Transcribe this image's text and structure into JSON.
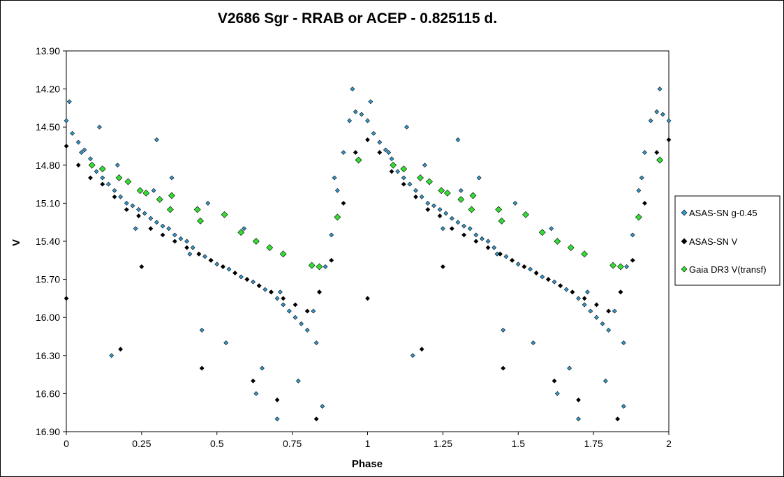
{
  "chart_data": {
    "type": "scatter",
    "title": "V2686 Sgr - RRAB or ACEP - 0.825115 d.",
    "xlabel": "Phase",
    "ylabel": "V",
    "xlim": [
      0,
      2
    ],
    "ylim": [
      16.9,
      13.9
    ],
    "y_inverted": true,
    "xticks": [
      0,
      0.25,
      0.5,
      0.75,
      1,
      1.25,
      1.5,
      1.75,
      2
    ],
    "xtick_labels": [
      "0",
      "0.25",
      "0.5",
      "0.75",
      "1",
      "1.25",
      "1.5",
      "1.75",
      "2"
    ],
    "yticks": [
      13.9,
      14.2,
      14.5,
      14.8,
      15.1,
      15.4,
      15.7,
      16.0,
      16.3,
      16.6,
      16.9
    ],
    "ytick_labels": [
      "13.90",
      "14.20",
      "14.50",
      "14.80",
      "15.10",
      "15.40",
      "15.70",
      "16.00",
      "16.30",
      "16.60",
      "16.90"
    ],
    "grid": false,
    "legend_position": "right",
    "series": [
      {
        "name": "ASAS-SN g-0.45",
        "color": "#3399cc",
        "marker": "diamond",
        "x": [
          0.0,
          0.02,
          0.04,
          0.06,
          0.08,
          0.1,
          0.12,
          0.14,
          0.16,
          0.18,
          0.2,
          0.22,
          0.24,
          0.26,
          0.28,
          0.3,
          0.32,
          0.34,
          0.36,
          0.38,
          0.4,
          0.42,
          0.44,
          0.46,
          0.48,
          0.5,
          0.52,
          0.54,
          0.56,
          0.58,
          0.6,
          0.62,
          0.64,
          0.66,
          0.68,
          0.7,
          0.72,
          0.74,
          0.76,
          0.78,
          0.8,
          0.82,
          0.84,
          0.86,
          0.88,
          0.9,
          0.92,
          0.94,
          0.96,
          0.98,
          1.0,
          1.02,
          1.04,
          1.06,
          1.08,
          1.1,
          1.12,
          1.14,
          1.16,
          1.18,
          1.2,
          1.22,
          1.24,
          1.26,
          1.28,
          1.3,
          1.32,
          1.34,
          1.36,
          1.38,
          1.4,
          1.42,
          1.44,
          1.46,
          1.48,
          1.5,
          1.52,
          1.54,
          1.56,
          1.58,
          1.6,
          1.62,
          1.64,
          1.66,
          1.68,
          1.7,
          1.72,
          1.74,
          1.76,
          1.78,
          1.8,
          1.82,
          1.84,
          1.86,
          1.88,
          1.9,
          1.92,
          1.94,
          1.96,
          1.98,
          2.0,
          0.01,
          0.05,
          0.11,
          0.17,
          0.23,
          0.29,
          0.35,
          0.41,
          0.47,
          0.53,
          0.59,
          0.65,
          0.71,
          0.77,
          0.83,
          0.89,
          0.95,
          1.01,
          1.07,
          1.13,
          1.19,
          1.25,
          1.31,
          1.37,
          1.43,
          1.49,
          1.55,
          1.61,
          1.67,
          1.73,
          1.79,
          1.85,
          1.91,
          1.97,
          0.15,
          0.45,
          0.63,
          0.85,
          1.15,
          1.45,
          1.63,
          1.85,
          0.3,
          0.7,
          1.3,
          1.7
        ],
        "y": [
          14.45,
          14.55,
          14.62,
          14.68,
          14.75,
          14.85,
          14.9,
          14.95,
          15.0,
          15.05,
          15.1,
          15.12,
          15.15,
          15.18,
          15.22,
          15.25,
          15.28,
          15.3,
          15.35,
          15.38,
          15.4,
          15.45,
          15.5,
          15.52,
          15.55,
          15.58,
          15.6,
          15.62,
          15.65,
          15.68,
          15.7,
          15.72,
          15.75,
          15.78,
          15.8,
          15.85,
          15.9,
          15.95,
          16.0,
          16.05,
          16.1,
          15.95,
          15.8,
          15.6,
          15.35,
          15.0,
          14.7,
          14.45,
          14.38,
          14.4,
          14.45,
          14.55,
          14.62,
          14.68,
          14.75,
          14.85,
          14.9,
          14.95,
          15.0,
          15.05,
          15.1,
          15.12,
          15.15,
          15.18,
          15.22,
          15.25,
          15.28,
          15.3,
          15.35,
          15.38,
          15.4,
          15.45,
          15.5,
          15.52,
          15.55,
          15.58,
          15.6,
          15.62,
          15.65,
          15.68,
          15.7,
          15.72,
          15.75,
          15.78,
          15.8,
          15.85,
          15.9,
          15.95,
          16.0,
          16.05,
          16.1,
          15.95,
          15.8,
          15.6,
          15.35,
          15.0,
          14.7,
          14.45,
          14.38,
          14.4,
          14.45,
          14.3,
          14.7,
          14.5,
          14.8,
          15.3,
          15.0,
          14.9,
          15.5,
          15.1,
          16.2,
          15.3,
          16.4,
          15.8,
          16.5,
          16.2,
          14.9,
          14.2,
          14.3,
          14.7,
          14.5,
          14.8,
          15.3,
          15.0,
          14.9,
          15.5,
          15.1,
          16.2,
          15.3,
          16.4,
          15.8,
          16.5,
          16.2,
          14.9,
          14.2,
          16.3,
          16.1,
          16.6,
          16.7,
          16.3,
          16.1,
          16.6,
          16.7,
          14.6,
          16.8,
          14.6,
          16.8
        ]
      },
      {
        "name": "ASAS-SN V",
        "color": "#000000",
        "marker": "diamond",
        "x": [
          0.0,
          0.04,
          0.08,
          0.12,
          0.16,
          0.2,
          0.24,
          0.28,
          0.32,
          0.36,
          0.4,
          0.44,
          0.48,
          0.52,
          0.56,
          0.6,
          0.64,
          0.68,
          0.72,
          0.76,
          0.8,
          0.84,
          0.88,
          0.92,
          0.96,
          1.0,
          1.04,
          1.08,
          1.12,
          1.16,
          1.2,
          1.24,
          1.28,
          1.32,
          1.36,
          1.4,
          1.44,
          1.48,
          1.52,
          1.56,
          1.6,
          1.64,
          1.68,
          1.72,
          1.76,
          1.8,
          1.84,
          1.88,
          1.92,
          1.96,
          2.0,
          0.0,
          0.18,
          0.45,
          0.62,
          0.83,
          1.0,
          1.18,
          1.45,
          1.62,
          1.83,
          0.25,
          0.7,
          1.25,
          1.7
        ],
        "y": [
          14.65,
          14.8,
          14.9,
          14.95,
          15.05,
          15.15,
          15.2,
          15.3,
          15.35,
          15.4,
          15.45,
          15.5,
          15.55,
          15.6,
          15.65,
          15.7,
          15.75,
          15.8,
          15.85,
          15.9,
          15.95,
          15.8,
          15.55,
          15.1,
          14.7,
          14.6,
          14.7,
          14.85,
          14.95,
          15.05,
          15.15,
          15.2,
          15.3,
          15.35,
          15.4,
          15.45,
          15.5,
          15.55,
          15.6,
          15.65,
          15.7,
          15.75,
          15.8,
          15.85,
          15.9,
          15.95,
          15.8,
          15.55,
          15.1,
          14.7,
          14.6,
          15.85,
          16.25,
          16.4,
          16.5,
          16.8,
          15.85,
          16.25,
          16.4,
          16.5,
          16.8,
          15.6,
          16.65,
          15.6,
          16.65
        ]
      },
      {
        "name": "Gaia DR3 V(transf)",
        "color": "#33dd33",
        "marker": "diamond",
        "x": [
          0.085,
          0.12,
          0.175,
          0.205,
          0.245,
          0.265,
          0.31,
          0.345,
          0.35,
          0.435,
          0.445,
          0.525,
          0.58,
          0.63,
          0.675,
          0.72,
          0.815,
          0.84,
          0.9,
          0.97,
          1.085,
          1.12,
          1.175,
          1.205,
          1.245,
          1.265,
          1.31,
          1.345,
          1.35,
          1.435,
          1.445,
          1.525,
          1.58,
          1.63,
          1.675,
          1.72,
          1.815,
          1.84,
          1.9,
          1.97
        ],
        "y": [
          14.8,
          14.83,
          14.9,
          14.93,
          15.0,
          15.02,
          15.07,
          15.15,
          15.04,
          15.15,
          15.24,
          15.19,
          15.33,
          15.4,
          15.45,
          15.5,
          15.59,
          15.6,
          15.21,
          14.76,
          14.8,
          14.83,
          14.9,
          14.93,
          15.0,
          15.02,
          15.07,
          15.15,
          15.04,
          15.15,
          15.24,
          15.19,
          15.33,
          15.4,
          15.45,
          15.5,
          15.59,
          15.6,
          15.21,
          14.76
        ]
      }
    ]
  }
}
